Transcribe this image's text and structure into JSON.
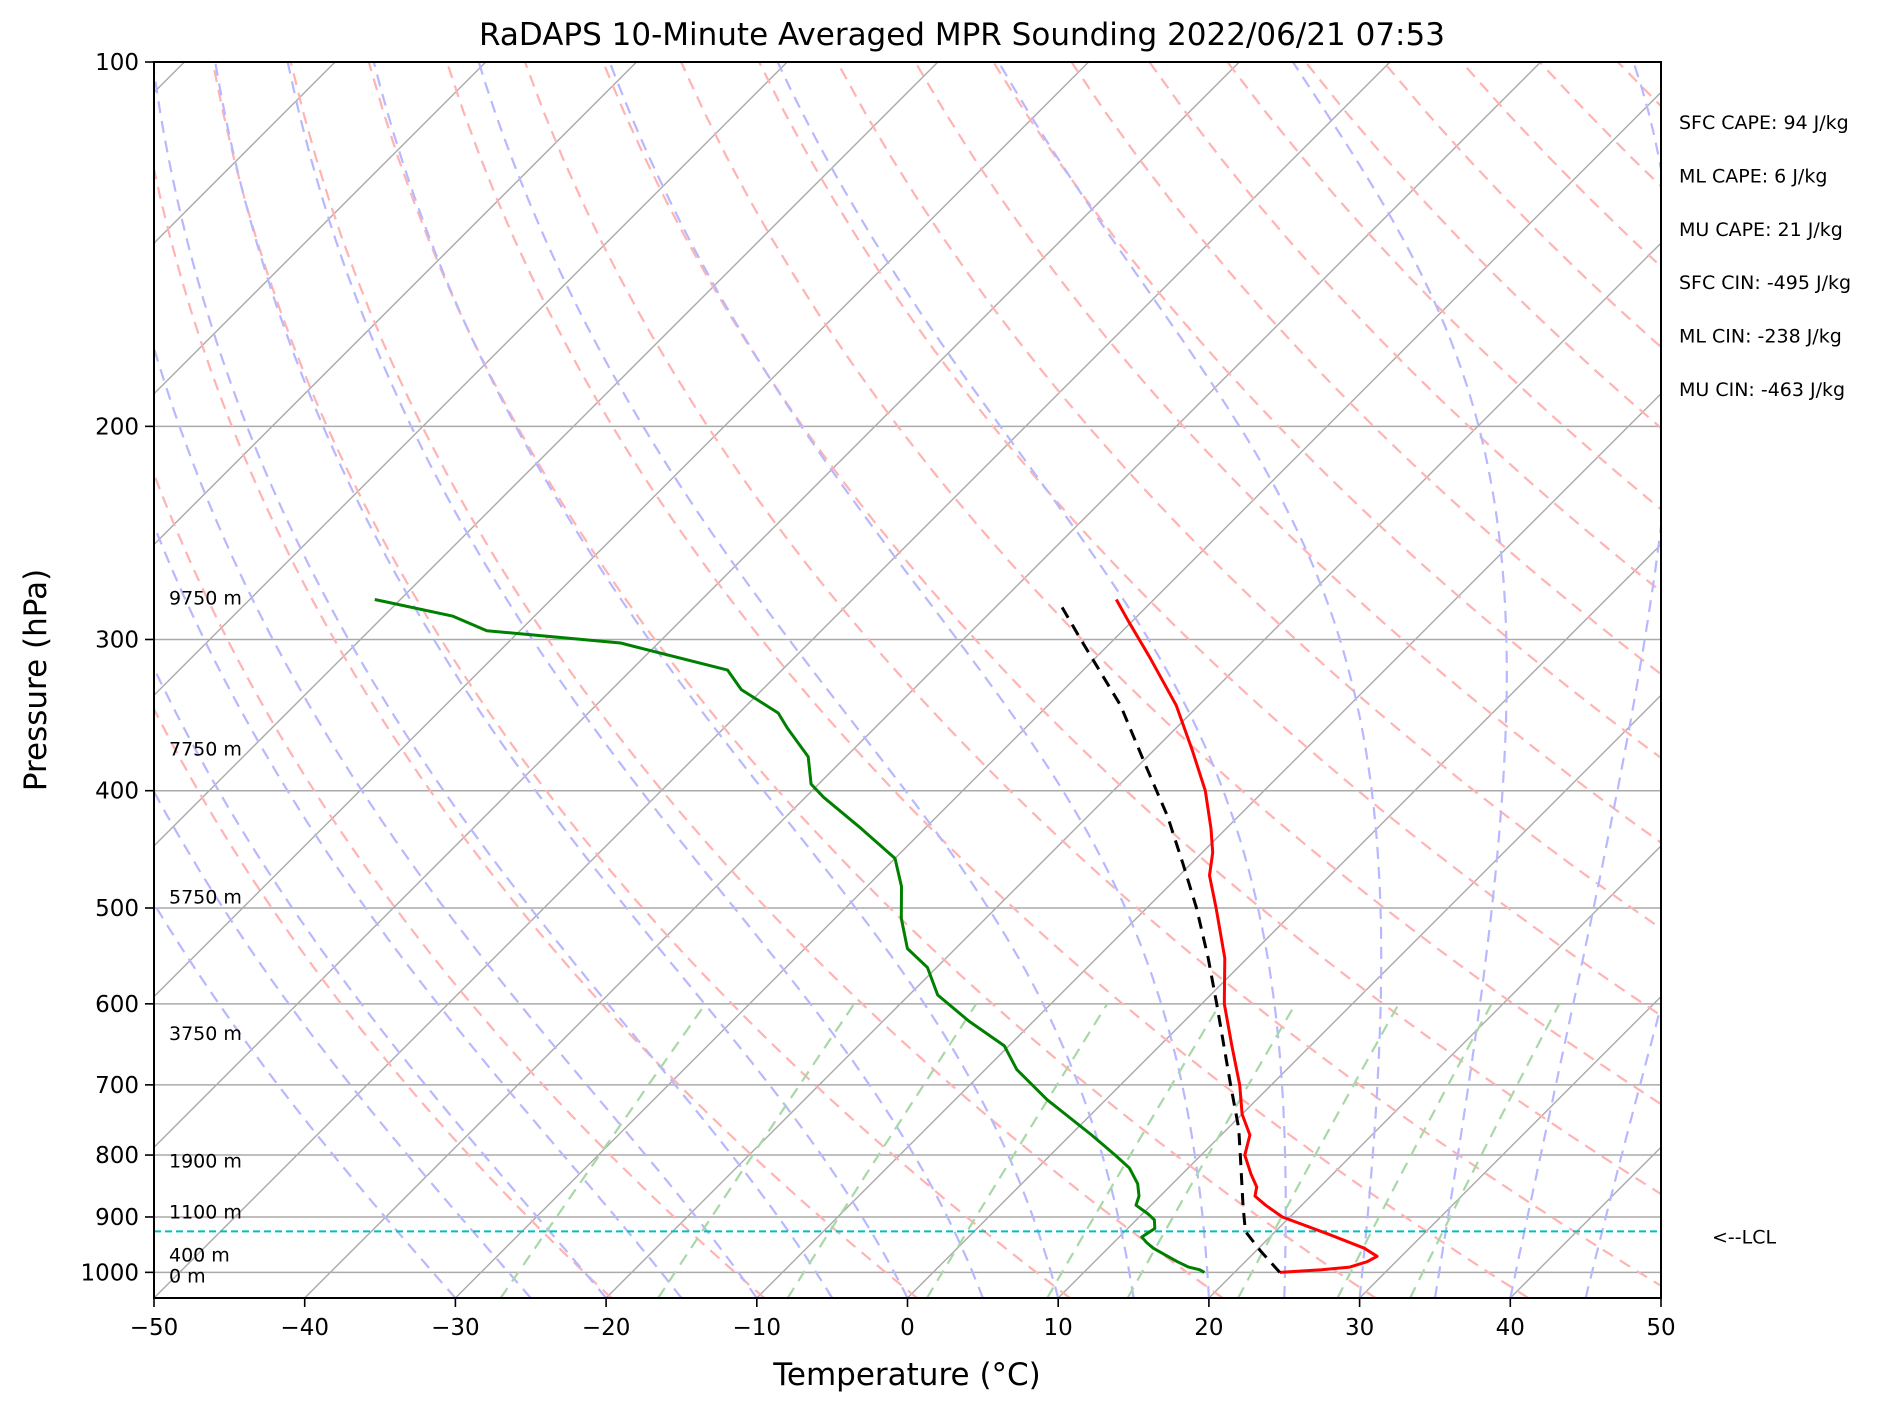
{
  "chart_data": {
    "type": "line",
    "title": "RaDAPS 10-Minute Averaged MPR Sounding 2022/06/21 07:53",
    "xlabel": "Temperature (°C)",
    "ylabel": "Pressure (hPa)",
    "xlim": [
      -50,
      50
    ],
    "ylim": [
      1050,
      100
    ],
    "y_scale": "log",
    "x_ticks": [
      -50,
      -40,
      -30,
      -20,
      -10,
      0,
      10,
      20,
      30,
      40,
      50
    ],
    "x_tick_labels": [
      "−50",
      "−40",
      "−30",
      "−20",
      "−10",
      "0",
      "10",
      "20",
      "30",
      "40",
      "50"
    ],
    "y_ticks": [
      100,
      200,
      300,
      400,
      500,
      600,
      700,
      800,
      900,
      1000
    ],
    "y_tick_labels": [
      "100",
      "200",
      "300",
      "400",
      "500",
      "600",
      "700",
      "800",
      "900",
      "1000"
    ],
    "grid": true,
    "skew": true,
    "series": [
      {
        "key": "temperature",
        "color": "#ff0000",
        "style": "solid",
        "points": [
          [
            1000,
            23.0
          ],
          [
            995,
            25.6
          ],
          [
            990,
            27.3
          ],
          [
            980,
            28.1
          ],
          [
            970,
            28.4
          ],
          [
            955,
            27.0
          ],
          [
            930,
            23.7
          ],
          [
            900,
            19.5
          ],
          [
            880,
            17.6
          ],
          [
            865,
            16.3
          ],
          [
            850,
            15.8
          ],
          [
            830,
            14.6
          ],
          [
            800,
            12.9
          ],
          [
            770,
            11.9
          ],
          [
            740,
            10.0
          ],
          [
            700,
            7.9
          ],
          [
            650,
            4.8
          ],
          [
            600,
            1.5
          ],
          [
            550,
            -1.5
          ],
          [
            500,
            -5.4
          ],
          [
            470,
            -8.0
          ],
          [
            450,
            -9.3
          ],
          [
            430,
            -11.0
          ],
          [
            400,
            -13.9
          ],
          [
            370,
            -17.5
          ],
          [
            340,
            -21.5
          ],
          [
            310,
            -26.5
          ],
          [
            290,
            -30.2
          ],
          [
            278,
            -32.5
          ]
        ]
      },
      {
        "key": "dewpoint",
        "color": "#008000",
        "style": "solid",
        "points": [
          [
            1000,
            18.0
          ],
          [
            995,
            17.5
          ],
          [
            990,
            16.6
          ],
          [
            980,
            15.5
          ],
          [
            970,
            14.5
          ],
          [
            955,
            13.0
          ],
          [
            945,
            12.2
          ],
          [
            935,
            11.5
          ],
          [
            920,
            11.8
          ],
          [
            905,
            11.2
          ],
          [
            895,
            10.4
          ],
          [
            880,
            9.0
          ],
          [
            865,
            8.6
          ],
          [
            845,
            7.7
          ],
          [
            820,
            6.1
          ],
          [
            800,
            4.3
          ],
          [
            770,
            1.4
          ],
          [
            720,
            -3.9
          ],
          [
            680,
            -7.9
          ],
          [
            650,
            -10.3
          ],
          [
            620,
            -14.3
          ],
          [
            590,
            -18.1
          ],
          [
            560,
            -20.6
          ],
          [
            540,
            -23.2
          ],
          [
            510,
            -25.6
          ],
          [
            480,
            -27.7
          ],
          [
            455,
            -30.0
          ],
          [
            430,
            -34.2
          ],
          [
            405,
            -38.8
          ],
          [
            395,
            -40.5
          ],
          [
            375,
            -42.5
          ],
          [
            355,
            -45.8
          ],
          [
            345,
            -47.4
          ],
          [
            330,
            -51.4
          ],
          [
            318,
            -53.6
          ],
          [
            302,
            -62.5
          ],
          [
            295,
            -72.2
          ],
          [
            287,
            -75.4
          ],
          [
            278,
            -81.7
          ]
        ]
      },
      {
        "key": "parcel",
        "color": "#000000",
        "style": "dashed",
        "points": [
          [
            1000,
            23.0
          ],
          [
            960,
            20.3
          ],
          [
            925,
            18.0
          ],
          [
            880,
            16.1
          ],
          [
            800,
            12.6
          ],
          [
            760,
            10.7
          ],
          [
            700,
            7.3
          ],
          [
            600,
            1.0
          ],
          [
            550,
            -2.6
          ],
          [
            500,
            -6.7
          ],
          [
            460,
            -10.5
          ],
          [
            420,
            -14.7
          ],
          [
            380,
            -19.7
          ],
          [
            340,
            -25.2
          ],
          [
            300,
            -32.2
          ],
          [
            279,
            -36.2
          ]
        ]
      }
    ],
    "lcl": {
      "pressure": 925,
      "label": "<--LCL",
      "color": "#00bfbf"
    },
    "height_labels": [
      {
        "pressure": 277,
        "label": "9750 m"
      },
      {
        "pressure": 369,
        "label": "7750 m"
      },
      {
        "pressure": 489,
        "label": "5750 m"
      },
      {
        "pressure": 634,
        "label": "3750 m"
      },
      {
        "pressure": 808,
        "label": "1900 m"
      },
      {
        "pressure": 891,
        "label": "1100 m"
      },
      {
        "pressure": 967,
        "label": "400 m"
      },
      {
        "pressure": 1006,
        "label": "0 m"
      }
    ],
    "indices": [
      "SFC CAPE: 94 J/kg",
      "ML CAPE: 6 J/kg",
      "MU CAPE: 21 J/kg",
      "SFC CIN: -495 J/kg",
      "ML CIN: -238 J/kg",
      "MU CIN: -463 J/kg"
    ],
    "reference_lines": {
      "isotherm_color": "#aaaaaa",
      "dry_adiabat_color": "#ffb3b3",
      "moist_adiabat_color": "#b8b8ff",
      "mixing_ratio_color": "#a8d8a8"
    }
  }
}
